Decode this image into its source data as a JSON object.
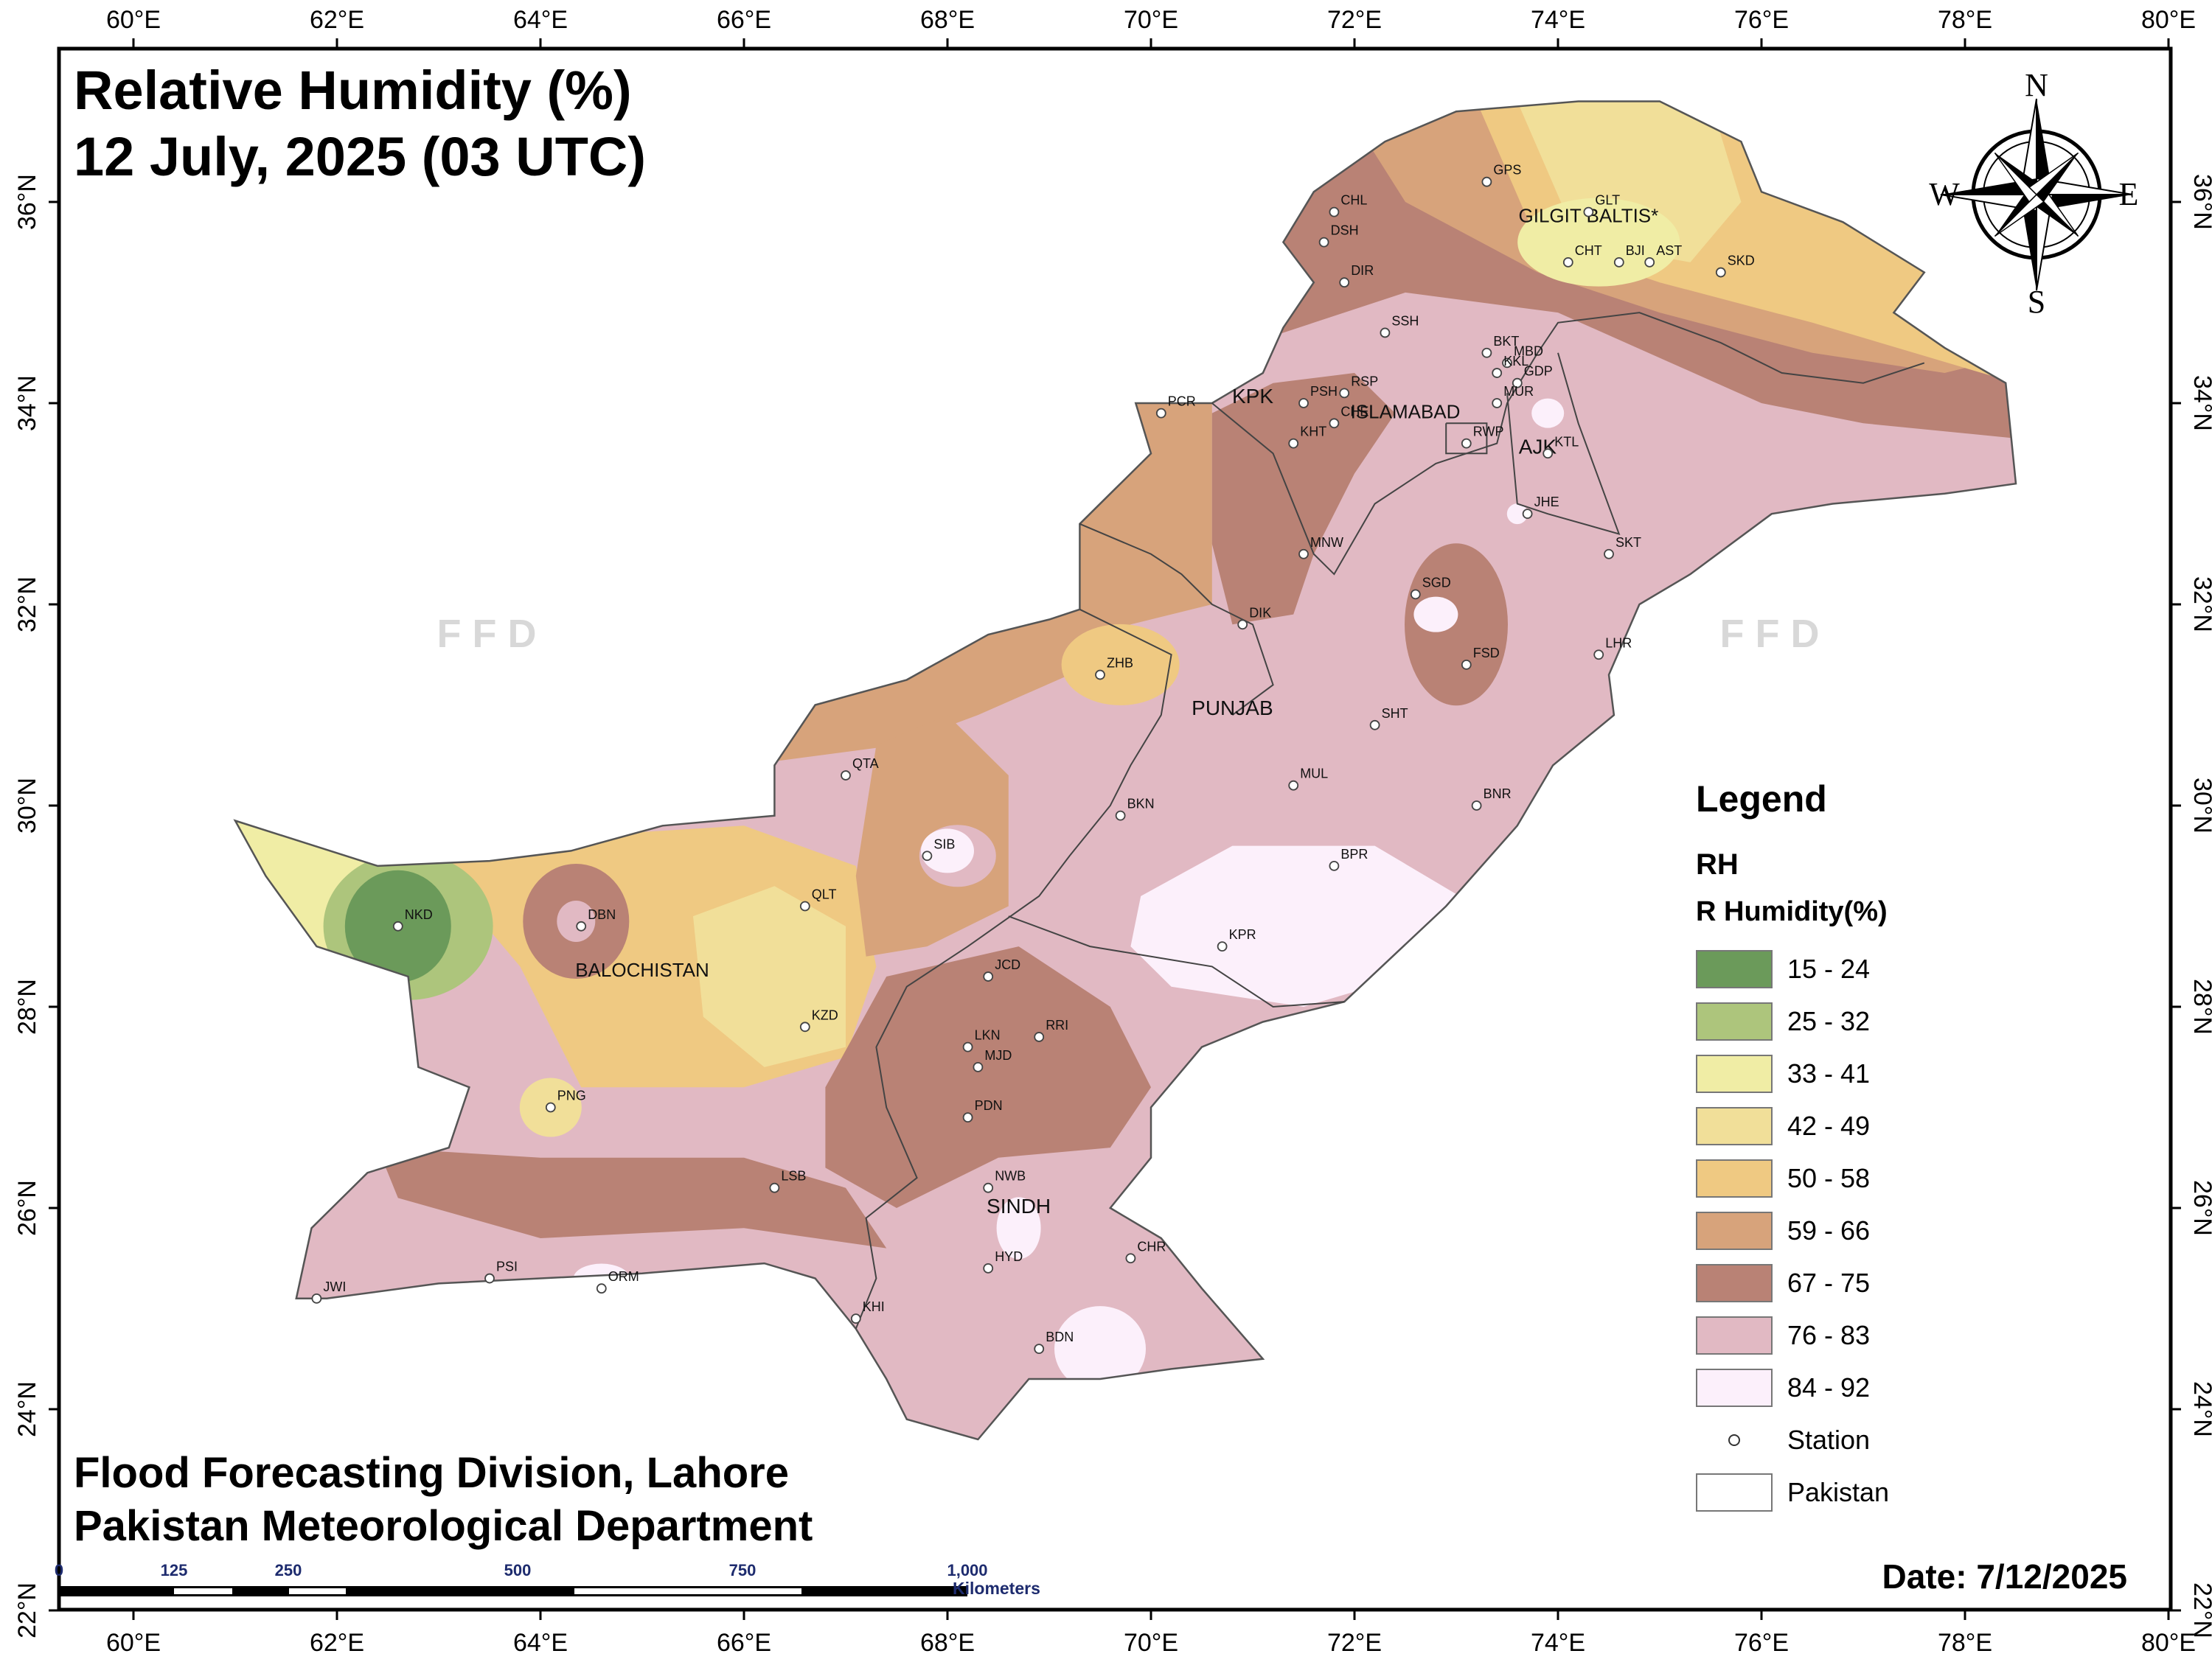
{
  "title": {
    "line1": "Relative Humidity (%)",
    "line2": "12 July, 2025 (03 UTC)"
  },
  "footer": {
    "line1": "Flood Forecasting Division, Lahore",
    "line2": "Pakistan Meteorological Department"
  },
  "date": "Date: 7/12/2025",
  "watermark": "F F D",
  "north_arrow": {
    "n": "N",
    "s": "S",
    "e": "E",
    "w": "W"
  },
  "axes": {
    "lon_labels": [
      "60°E",
      "62°E",
      "64°E",
      "66°E",
      "68°E",
      "70°E",
      "72°E",
      "74°E",
      "76°E",
      "78°E",
      "80°E"
    ],
    "lat_labels": [
      "22°N",
      "24°N",
      "26°N",
      "28°N",
      "30°N",
      "32°N",
      "34°N",
      "36°N"
    ]
  },
  "legend": {
    "title": "Legend",
    "layer": "RH",
    "field": "R Humidity(%)",
    "classes": [
      {
        "label": "15 - 24",
        "color": "#6b9a5a"
      },
      {
        "label": "25 - 32",
        "color": "#adc57c"
      },
      {
        "label": "33 - 41",
        "color": "#f0eda5"
      },
      {
        "label": "42 - 49",
        "color": "#f1df99"
      },
      {
        "label": "50 - 58",
        "color": "#efc982"
      },
      {
        "label": "59 - 66",
        "color": "#d7a37b"
      },
      {
        "label": "67 - 75",
        "color": "#b98275"
      },
      {
        "label": "76 - 83",
        "color": "#e1b9c3"
      },
      {
        "label": "84 - 92",
        "color": "#fcf0fb"
      }
    ],
    "station_label": "Station",
    "pakistan_label": "Pakistan"
  },
  "scale_bar": {
    "labels": [
      "0",
      "125",
      "250",
      "500",
      "750",
      "1,000"
    ],
    "unit": "Kilometers"
  },
  "regions": [
    "GILGIT BALTIS*",
    "KPK",
    "ISLAMABAD",
    "AJK",
    "PUNJAB",
    "BALOCHISTAN",
    "SINDH"
  ],
  "stations": [
    {
      "code": "GPS",
      "lon": 73.3,
      "lat": 36.2
    },
    {
      "code": "GLT",
      "lon": 74.3,
      "lat": 35.9
    },
    {
      "code": "CHT",
      "lon": 74.1,
      "lat": 35.4
    },
    {
      "code": "BJI",
      "lon": 74.6,
      "lat": 35.4
    },
    {
      "code": "AST",
      "lon": 74.9,
      "lat": 35.4
    },
    {
      "code": "SKD",
      "lon": 75.6,
      "lat": 35.3
    },
    {
      "code": "CHL",
      "lon": 71.8,
      "lat": 35.9
    },
    {
      "code": "DSH",
      "lon": 71.7,
      "lat": 35.6
    },
    {
      "code": "DIR",
      "lon": 71.9,
      "lat": 35.2
    },
    {
      "code": "SSH",
      "lon": 72.3,
      "lat": 34.7
    },
    {
      "code": "BKT",
      "lon": 73.3,
      "lat": 34.5
    },
    {
      "code": "MBD",
      "lon": 73.5,
      "lat": 34.4
    },
    {
      "code": "KKL",
      "lon": 73.4,
      "lat": 34.3
    },
    {
      "code": "GDP",
      "lon": 73.6,
      "lat": 34.2
    },
    {
      "code": "MUR",
      "lon": 73.4,
      "lat": 34.0
    },
    {
      "code": "RWP",
      "lon": 73.1,
      "lat": 33.6
    },
    {
      "code": "PSH",
      "lon": 71.5,
      "lat": 34.0
    },
    {
      "code": "RSP",
      "lon": 71.9,
      "lat": 34.1
    },
    {
      "code": "CHE",
      "lon": 71.8,
      "lat": 33.8
    },
    {
      "code": "KHT",
      "lon": 71.4,
      "lat": 33.6
    },
    {
      "code": "PCR",
      "lon": 70.1,
      "lat": 33.9
    },
    {
      "code": "KTL",
      "lon": 73.9,
      "lat": 33.5
    },
    {
      "code": "JHE",
      "lon": 73.7,
      "lat": 32.9
    },
    {
      "code": "SKT",
      "lon": 74.5,
      "lat": 32.5
    },
    {
      "code": "MNW",
      "lon": 71.5,
      "lat": 32.5
    },
    {
      "code": "DIK",
      "lon": 70.9,
      "lat": 31.8
    },
    {
      "code": "SGD",
      "lon": 72.6,
      "lat": 32.1
    },
    {
      "code": "FSD",
      "lon": 73.1,
      "lat": 31.4
    },
    {
      "code": "LHR",
      "lon": 74.4,
      "lat": 31.5
    },
    {
      "code": "ZHB",
      "lon": 69.5,
      "lat": 31.3
    },
    {
      "code": "SHT",
      "lon": 72.2,
      "lat": 30.8
    },
    {
      "code": "QTA",
      "lon": 67.0,
      "lat": 30.3
    },
    {
      "code": "MUL",
      "lon": 71.4,
      "lat": 30.2
    },
    {
      "code": "BKN",
      "lon": 69.7,
      "lat": 29.9
    },
    {
      "code": "BNR",
      "lon": 73.2,
      "lat": 30.0
    },
    {
      "code": "SIB",
      "lon": 67.8,
      "lat": 29.5
    },
    {
      "code": "BPR",
      "lon": 71.8,
      "lat": 29.4
    },
    {
      "code": "NKD",
      "lon": 62.6,
      "lat": 28.8
    },
    {
      "code": "DBN",
      "lon": 64.4,
      "lat": 28.8
    },
    {
      "code": "QLT",
      "lon": 66.6,
      "lat": 29.0
    },
    {
      "code": "KPR",
      "lon": 70.7,
      "lat": 28.6
    },
    {
      "code": "JCD",
      "lon": 68.4,
      "lat": 28.3
    },
    {
      "code": "KZD",
      "lon": 66.6,
      "lat": 27.8
    },
    {
      "code": "RRI",
      "lon": 68.9,
      "lat": 27.7
    },
    {
      "code": "LKN",
      "lon": 68.2,
      "lat": 27.6
    },
    {
      "code": "MJD",
      "lon": 68.3,
      "lat": 27.4
    },
    {
      "code": "PNG",
      "lon": 64.1,
      "lat": 27.0
    },
    {
      "code": "PDN",
      "lon": 68.2,
      "lat": 26.9
    },
    {
      "code": "LSB",
      "lon": 66.3,
      "lat": 26.2
    },
    {
      "code": "NWB",
      "lon": 68.4,
      "lat": 26.2
    },
    {
      "code": "CHR",
      "lon": 69.8,
      "lat": 25.5
    },
    {
      "code": "HYD",
      "lon": 68.4,
      "lat": 25.4
    },
    {
      "code": "PSI",
      "lon": 63.5,
      "lat": 25.3
    },
    {
      "code": "ORM",
      "lon": 64.6,
      "lat": 25.2
    },
    {
      "code": "JWI",
      "lon": 61.8,
      "lat": 25.1
    },
    {
      "code": "KHI",
      "lon": 67.1,
      "lat": 24.9
    },
    {
      "code": "BDN",
      "lon": 68.9,
      "lat": 24.6
    }
  ]
}
